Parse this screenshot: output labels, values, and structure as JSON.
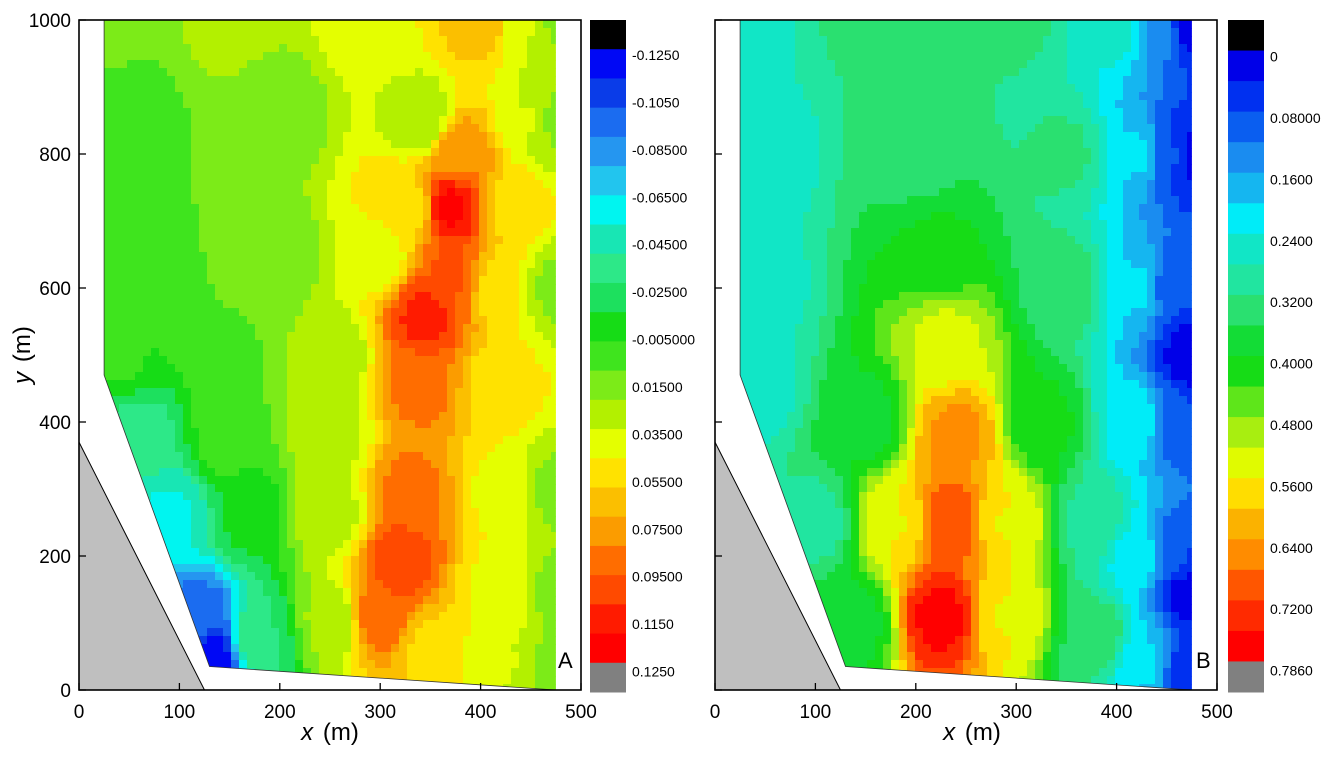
{
  "chart_data": [
    {
      "type": "heatmap",
      "panel_label": "A",
      "xlabel": {
        "var": "x",
        "unit": "(m)"
      },
      "ylabel": {
        "var": "y",
        "unit": "(m)"
      },
      "xlim": [
        0,
        500
      ],
      "ylim": [
        0,
        1000
      ],
      "x_ticks": [
        "0",
        "100",
        "200",
        "300",
        "400",
        "500"
      ],
      "y_ticks": [
        "0",
        "200",
        "400",
        "600",
        "800",
        "1000"
      ],
      "land_polygon": [
        [
          0,
          370
        ],
        [
          125,
          0
        ],
        [
          0,
          0
        ]
      ],
      "domain_polygon": [
        [
          25,
          1000
        ],
        [
          475,
          1000
        ],
        [
          475,
          0
        ],
        [
          130,
          35
        ],
        [
          25,
          470
        ]
      ],
      "colorbar": {
        "labels": [
          "-0.1250",
          "-0.1050",
          "-0.08500",
          "-0.06500",
          "-0.04500",
          "-0.02500",
          "-0.005000",
          "0.01500",
          "0.03500",
          "0.05500",
          "0.07500",
          "0.09500",
          "0.1150",
          "0.1250"
        ],
        "colors": [
          "#000000",
          "#0008f5",
          "#0a3ce8",
          "#1b6cf0",
          "#2596f0",
          "#22c5ee",
          "#00f5f0",
          "#18e6b4",
          "#2de888",
          "#1de05e",
          "#16dc16",
          "#3fe41e",
          "#7ceb18",
          "#b3f000",
          "#e4ff00",
          "#ffe200",
          "#fbbf00",
          "#fb9c00",
          "#ff6d00",
          "#ff4a00",
          "#ff1b00",
          "#ff0000",
          "#808080"
        ],
        "range": [
          -0.125,
          0.125
        ]
      },
      "field": [
        {
          "x": 25,
          "y": 1000,
          "v": 0.01
        },
        {
          "x": 150,
          "y": 1000,
          "v": 0.02
        },
        {
          "x": 300,
          "y": 1000,
          "v": 0.04
        },
        {
          "x": 400,
          "y": 1000,
          "v": 0.06
        },
        {
          "x": 450,
          "y": 1000,
          "v": 0.03
        },
        {
          "x": 475,
          "y": 1000,
          "v": 0.015
        },
        {
          "x": 50,
          "y": 850,
          "v": 0.0
        },
        {
          "x": 200,
          "y": 850,
          "v": 0.01
        },
        {
          "x": 340,
          "y": 850,
          "v": 0.02
        },
        {
          "x": 380,
          "y": 800,
          "v": 0.075
        },
        {
          "x": 450,
          "y": 850,
          "v": 0.03
        },
        {
          "x": 475,
          "y": 850,
          "v": 0.015
        },
        {
          "x": 370,
          "y": 720,
          "v": 0.115
        },
        {
          "x": 330,
          "y": 720,
          "v": 0.05
        },
        {
          "x": 430,
          "y": 720,
          "v": 0.05
        },
        {
          "x": 50,
          "y": 650,
          "v": 0.0
        },
        {
          "x": 200,
          "y": 650,
          "v": 0.01
        },
        {
          "x": 300,
          "y": 650,
          "v": 0.035
        },
        {
          "x": 345,
          "y": 560,
          "v": 0.105
        },
        {
          "x": 370,
          "y": 620,
          "v": 0.09
        },
        {
          "x": 420,
          "y": 600,
          "v": 0.045
        },
        {
          "x": 475,
          "y": 600,
          "v": 0.015
        },
        {
          "x": 40,
          "y": 500,
          "v": -0.005
        },
        {
          "x": 150,
          "y": 500,
          "v": 0.005
        },
        {
          "x": 250,
          "y": 500,
          "v": 0.02
        },
        {
          "x": 340,
          "y": 450,
          "v": 0.08
        },
        {
          "x": 420,
          "y": 450,
          "v": 0.045
        },
        {
          "x": 60,
          "y": 380,
          "v": -0.035
        },
        {
          "x": 150,
          "y": 380,
          "v": 0.0
        },
        {
          "x": 250,
          "y": 380,
          "v": 0.025
        },
        {
          "x": 330,
          "y": 300,
          "v": 0.08
        },
        {
          "x": 420,
          "y": 300,
          "v": 0.04
        },
        {
          "x": 475,
          "y": 300,
          "v": 0.015
        },
        {
          "x": 90,
          "y": 260,
          "v": -0.055
        },
        {
          "x": 170,
          "y": 260,
          "v": -0.015
        },
        {
          "x": 250,
          "y": 260,
          "v": 0.025
        },
        {
          "x": 320,
          "y": 190,
          "v": 0.1
        },
        {
          "x": 300,
          "y": 110,
          "v": 0.085
        },
        {
          "x": 420,
          "y": 150,
          "v": 0.04
        },
        {
          "x": 475,
          "y": 150,
          "v": 0.015
        },
        {
          "x": 120,
          "y": 100,
          "v": -0.1
        },
        {
          "x": 130,
          "y": 50,
          "v": -0.12
        },
        {
          "x": 180,
          "y": 80,
          "v": -0.03
        },
        {
          "x": 250,
          "y": 100,
          "v": 0.02
        },
        {
          "x": 350,
          "y": 60,
          "v": 0.05
        },
        {
          "x": 420,
          "y": 40,
          "v": 0.03
        },
        {
          "x": 475,
          "y": 30,
          "v": 0.015
        }
      ]
    },
    {
      "type": "heatmap",
      "panel_label": "B",
      "xlabel": {
        "var": "x",
        "unit": "(m)"
      },
      "ylabel": {
        "var": "",
        "unit": ""
      },
      "xlim": [
        0,
        500
      ],
      "ylim": [
        0,
        1000
      ],
      "x_ticks": [
        "0",
        "100",
        "200",
        "300",
        "400",
        "500"
      ],
      "y_ticks": [],
      "land_polygon": [
        [
          0,
          370
        ],
        [
          125,
          0
        ],
        [
          0,
          0
        ]
      ],
      "domain_polygon": [
        [
          25,
          1000
        ],
        [
          475,
          1000
        ],
        [
          475,
          0
        ],
        [
          130,
          35
        ],
        [
          25,
          470
        ]
      ],
      "colorbar": {
        "labels": [
          "0",
          "0.08000",
          "0.1600",
          "0.2400",
          "0.3200",
          "0.4000",
          "0.4800",
          "0.5600",
          "0.6400",
          "0.7200",
          "0.7860"
        ],
        "colors": [
          "#000000",
          "#0000e8",
          "#0030f0",
          "#0a5ef0",
          "#1a8cf0",
          "#15b6f0",
          "#00ecf8",
          "#11e6c6",
          "#21e5a0",
          "#2ae070",
          "#13dc36",
          "#16dc16",
          "#5ee61a",
          "#a8ee10",
          "#e0fb00",
          "#ffdd00",
          "#fbb200",
          "#ff8c00",
          "#ff5600",
          "#ff2a00",
          "#ff0000",
          "#808080"
        ],
        "range": [
          0,
          0.786
        ]
      },
      "field": [
        {
          "x": 25,
          "y": 1000,
          "v": 0.26
        },
        {
          "x": 150,
          "y": 1000,
          "v": 0.32
        },
        {
          "x": 300,
          "y": 1000,
          "v": 0.32
        },
        {
          "x": 400,
          "y": 1000,
          "v": 0.26
        },
        {
          "x": 440,
          "y": 1000,
          "v": 0.15
        },
        {
          "x": 475,
          "y": 1000,
          "v": 0.02
        },
        {
          "x": 40,
          "y": 800,
          "v": 0.25
        },
        {
          "x": 200,
          "y": 800,
          "v": 0.34
        },
        {
          "x": 350,
          "y": 800,
          "v": 0.32
        },
        {
          "x": 420,
          "y": 800,
          "v": 0.2
        },
        {
          "x": 460,
          "y": 800,
          "v": 0.08
        },
        {
          "x": 475,
          "y": 800,
          "v": 0.02
        },
        {
          "x": 40,
          "y": 600,
          "v": 0.26
        },
        {
          "x": 220,
          "y": 650,
          "v": 0.4
        },
        {
          "x": 350,
          "y": 600,
          "v": 0.34
        },
        {
          "x": 420,
          "y": 600,
          "v": 0.2
        },
        {
          "x": 460,
          "y": 600,
          "v": 0.08
        },
        {
          "x": 230,
          "y": 520,
          "v": 0.52
        },
        {
          "x": 40,
          "y": 450,
          "v": 0.26
        },
        {
          "x": 150,
          "y": 400,
          "v": 0.38
        },
        {
          "x": 240,
          "y": 380,
          "v": 0.64
        },
        {
          "x": 330,
          "y": 400,
          "v": 0.4
        },
        {
          "x": 420,
          "y": 400,
          "v": 0.22
        },
        {
          "x": 460,
          "y": 400,
          "v": 0.08
        },
        {
          "x": 100,
          "y": 250,
          "v": 0.3
        },
        {
          "x": 180,
          "y": 250,
          "v": 0.55
        },
        {
          "x": 235,
          "y": 250,
          "v": 0.7
        },
        {
          "x": 290,
          "y": 250,
          "v": 0.55
        },
        {
          "x": 380,
          "y": 250,
          "v": 0.3
        },
        {
          "x": 420,
          "y": 200,
          "v": 0.22
        },
        {
          "x": 460,
          "y": 200,
          "v": 0.08
        },
        {
          "x": 140,
          "y": 100,
          "v": 0.38
        },
        {
          "x": 225,
          "y": 110,
          "v": 0.76
        },
        {
          "x": 290,
          "y": 110,
          "v": 0.55
        },
        {
          "x": 380,
          "y": 80,
          "v": 0.34
        },
        {
          "x": 430,
          "y": 40,
          "v": 0.2
        },
        {
          "x": 470,
          "y": 30,
          "v": 0.05
        },
        {
          "x": 475,
          "y": 500,
          "v": 0.02
        },
        {
          "x": 475,
          "y": 150,
          "v": 0.02
        }
      ]
    }
  ]
}
